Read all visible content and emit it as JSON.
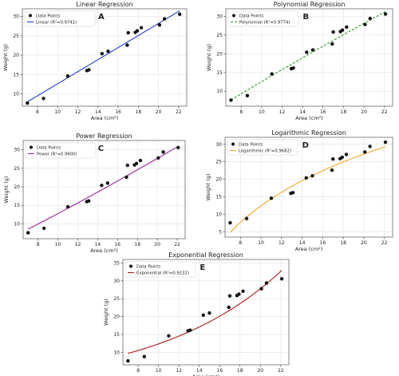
{
  "chart_data": [
    {
      "type": "scatter",
      "panel_letter": "A",
      "title": "Linear Regression",
      "xlabel": "Area (cm²)",
      "ylabel": "Weight (g)",
      "xlim": [
        6.5,
        22.8
      ],
      "ylim": [
        6.8,
        32
      ],
      "xticks": [
        8,
        10,
        12,
        14,
        16,
        18,
        20,
        22
      ],
      "yticks": [
        10,
        15,
        20,
        25,
        30
      ],
      "grid": true,
      "legend_position": "top-left",
      "fit_color": "#1f3fd1",
      "fit_type": "linear",
      "fit": {
        "slope": 1.56,
        "intercept": -3.0
      },
      "legend": [
        "Data Points",
        "Linear (R²=0.9741)"
      ],
      "points": {
        "x": [
          7.0,
          8.6,
          11.0,
          12.9,
          13.1,
          14.4,
          15.0,
          16.9,
          17.0,
          17.7,
          17.9,
          18.3,
          20.1,
          20.6,
          22.1
        ],
        "y": [
          7.6,
          8.8,
          14.6,
          16.0,
          16.2,
          20.4,
          21.0,
          22.6,
          25.8,
          25.9,
          26.3,
          27.1,
          27.8,
          29.4,
          30.6
        ]
      }
    },
    {
      "type": "scatter",
      "panel_letter": "B",
      "title": "Polynomial Regression",
      "xlabel": "Area (cm²)",
      "ylabel": "Weight (g)",
      "xlim": [
        6.5,
        22.8
      ],
      "ylim": [
        6.0,
        32
      ],
      "xticks": [
        8,
        10,
        12,
        14,
        16,
        18,
        20,
        22
      ],
      "yticks": [
        10,
        15,
        20,
        25,
        30
      ],
      "grid": true,
      "legend_position": "top-left",
      "fit_color": "#2a9a2a",
      "fit_type": "poly2",
      "fit": {
        "a": -0.0055,
        "b": 1.72,
        "c": -4.1
      },
      "legend": [
        "Data Points",
        "Polynomial (R²=0.9774)"
      ],
      "points": {
        "x": [
          7.0,
          8.6,
          11.0,
          12.9,
          13.1,
          14.4,
          15.0,
          16.9,
          17.0,
          17.7,
          17.9,
          18.3,
          20.1,
          20.6,
          22.1
        ],
        "y": [
          7.6,
          8.8,
          14.6,
          16.0,
          16.2,
          20.4,
          21.0,
          22.6,
          25.8,
          25.9,
          26.3,
          27.1,
          27.8,
          29.4,
          30.6
        ]
      }
    },
    {
      "type": "scatter",
      "panel_letter": "C",
      "title": "Power Regression",
      "xlabel": "Area (cm²)",
      "ylabel": "Weight (g)",
      "xlim": [
        6.5,
        22.8
      ],
      "ylim": [
        6.0,
        32.5
      ],
      "xticks": [
        8,
        10,
        12,
        14,
        16,
        18,
        20,
        22
      ],
      "yticks": [
        10,
        15,
        20,
        25,
        30
      ],
      "grid": true,
      "legend_position": "top-left",
      "fit_color": "#a020a0",
      "fit_type": "power",
      "fit": {
        "a": 0.98,
        "b": 1.115
      },
      "legend": [
        "Data Points",
        "Power (R²=0.9600)"
      ],
      "points": {
        "x": [
          7.0,
          8.6,
          11.0,
          12.9,
          13.1,
          14.4,
          15.0,
          16.9,
          17.0,
          17.7,
          17.9,
          18.3,
          20.1,
          20.6,
          22.1
        ],
        "y": [
          7.6,
          8.8,
          14.6,
          16.0,
          16.2,
          20.4,
          21.0,
          22.6,
          25.8,
          25.9,
          26.3,
          27.1,
          27.8,
          29.4,
          30.6
        ]
      }
    },
    {
      "type": "scatter",
      "panel_letter": "D",
      "title": "Logarithmic Regression",
      "xlabel": "Area (cm²)",
      "ylabel": "Weight (g)",
      "xlim": [
        6.5,
        22.8
      ],
      "ylim": [
        3.5,
        32
      ],
      "xticks": [
        8,
        10,
        12,
        14,
        16,
        18,
        20,
        22
      ],
      "yticks": [
        5,
        10,
        15,
        20,
        25,
        30
      ],
      "grid": true,
      "legend_position": "top-left",
      "fit_color": "#f5a623",
      "fit_type": "log",
      "fit": {
        "a": 21.3,
        "b": -36.6
      },
      "legend": [
        "Data Points",
        "Logarithmic (R²=0.9682)"
      ],
      "points": {
        "x": [
          7.0,
          8.6,
          11.0,
          12.9,
          13.1,
          14.4,
          15.0,
          16.9,
          17.0,
          17.7,
          17.9,
          18.3,
          20.1,
          20.6,
          22.1
        ],
        "y": [
          7.6,
          8.8,
          14.6,
          16.0,
          16.2,
          20.4,
          21.0,
          22.6,
          25.8,
          25.9,
          26.3,
          27.1,
          27.8,
          29.4,
          30.6
        ]
      }
    },
    {
      "type": "scatter",
      "panel_letter": "E",
      "title": "Exponential Regression",
      "xlabel": "Area (cm²)",
      "ylabel": "Weight (g)",
      "xlim": [
        6.5,
        22.8
      ],
      "ylim": [
        6.5,
        36
      ],
      "xticks": [
        8,
        10,
        12,
        14,
        16,
        18,
        20,
        22
      ],
      "yticks": [
        10,
        15,
        20,
        25,
        30,
        35
      ],
      "grid": true,
      "legend_position": "top-left",
      "fit_color": "#b01818",
      "fit_type": "exp",
      "fit": {
        "a": 5.5,
        "b": 0.081
      },
      "legend": [
        "Data Points",
        "Exponential (R²=0.9232)"
      ],
      "points": {
        "x": [
          7.0,
          8.6,
          11.0,
          12.9,
          13.1,
          14.4,
          15.0,
          16.9,
          17.0,
          17.7,
          17.9,
          18.3,
          20.1,
          20.6,
          22.1
        ],
        "y": [
          7.6,
          8.8,
          14.6,
          16.0,
          16.2,
          20.4,
          21.0,
          22.6,
          25.8,
          25.9,
          26.3,
          27.1,
          27.8,
          29.4,
          30.6
        ]
      }
    }
  ]
}
